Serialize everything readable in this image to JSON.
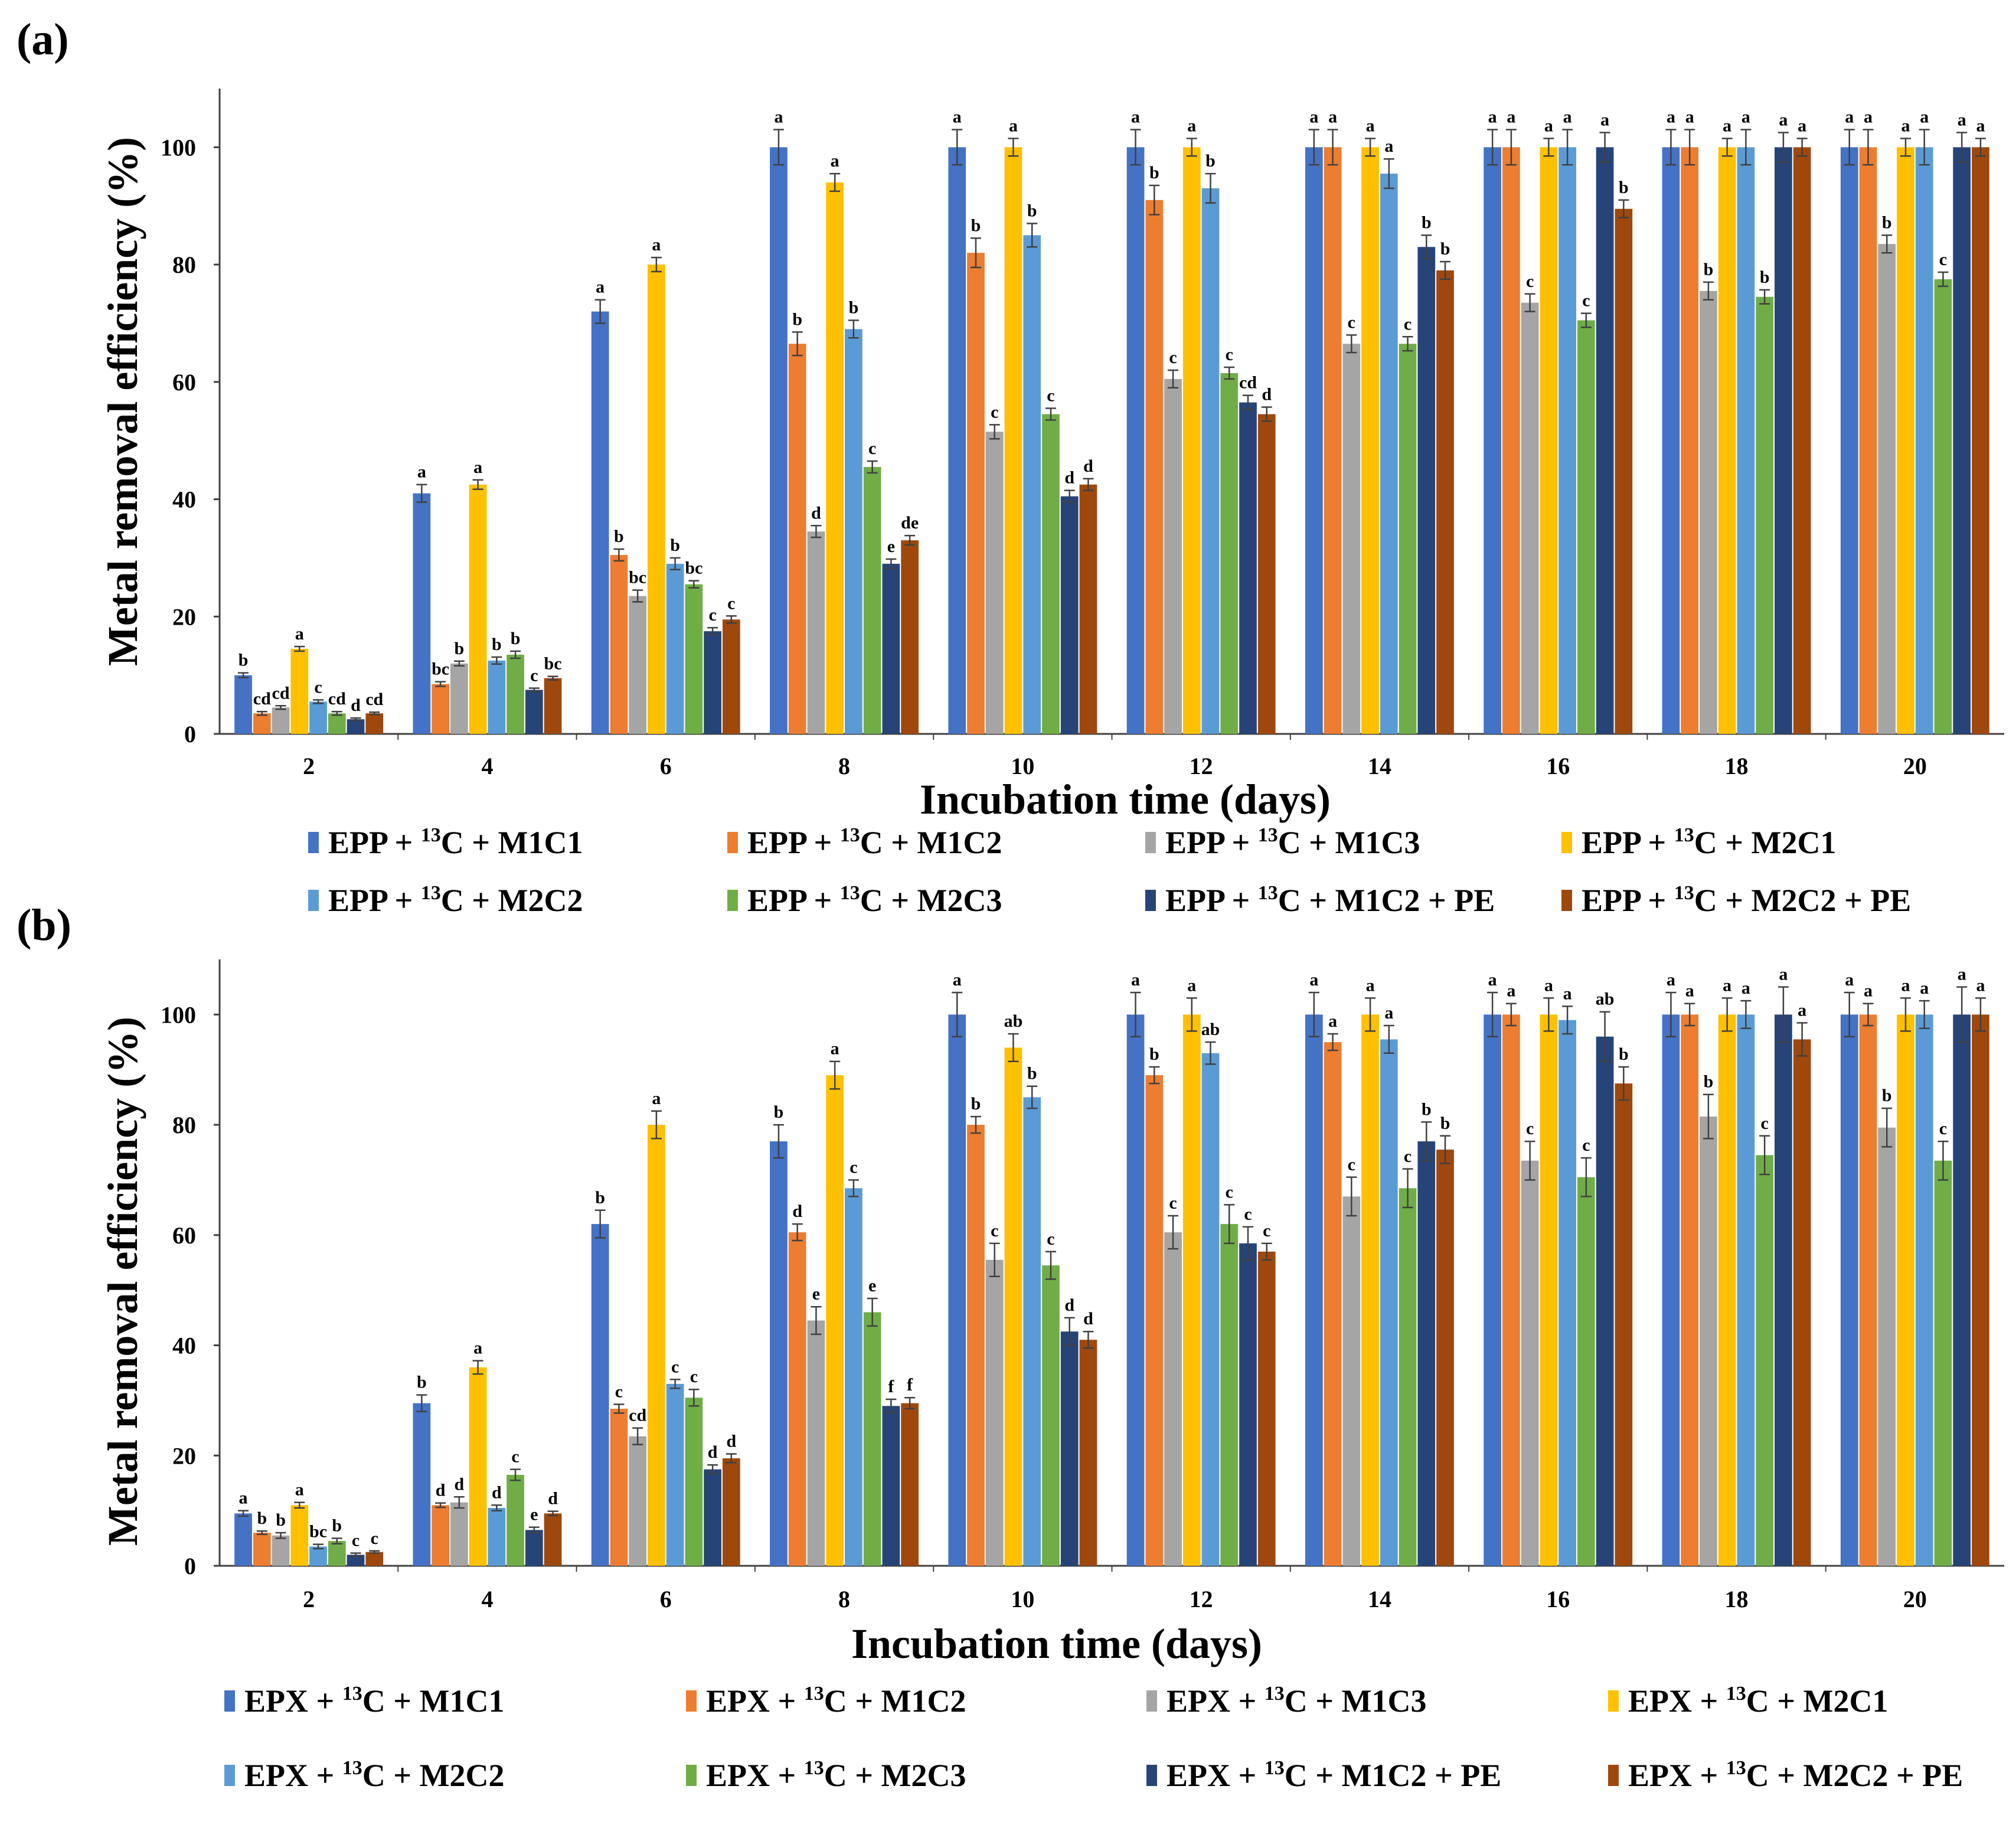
{
  "figure": {
    "panels": [
      "(a)",
      "(b)"
    ]
  },
  "colors": {
    "axis": "#404040",
    "text": "#000000",
    "error_bar": "#404040",
    "series": [
      "#4472c4",
      "#ed7d31",
      "#a5a5a5",
      "#ffc000",
      "#5b9bd5",
      "#70ad47",
      "#264478",
      "#9e480e"
    ]
  },
  "chart_data": [
    {
      "panel": "(a)",
      "type": "bar",
      "xlabel": "Incubation time (days)",
      "ylabel": "Metal removal efficiency (%)",
      "ylim": [
        0,
        110
      ],
      "yticks": [
        0,
        20,
        40,
        60,
        80,
        100
      ],
      "grid": false,
      "legend_position": "bottom",
      "categories": [
        "2",
        "4",
        "6",
        "8",
        "10",
        "12",
        "14",
        "16",
        "18",
        "20"
      ],
      "series": [
        {
          "name": "EPP + 13C + M1C1",
          "legend": {
            "prefix": "EPP + ",
            "sup": "13",
            "suffix": "C + M1C1"
          },
          "values": [
            10,
            41,
            72,
            100,
            100,
            100,
            100,
            100,
            100,
            100
          ],
          "errors": [
            0.4,
            1.5,
            2,
            3,
            3,
            3,
            3,
            3,
            3,
            3
          ],
          "labels": [
            "b",
            "a",
            "a",
            "a",
            "a",
            "a",
            "a",
            "a",
            "a",
            "a"
          ]
        },
        {
          "name": "EPP + 13C + M1C2",
          "legend": {
            "prefix": "EPP + ",
            "sup": "13",
            "suffix": "C + M1C2"
          },
          "values": [
            3.5,
            8.5,
            30.5,
            66.5,
            82,
            91,
            100,
            100,
            100,
            100
          ],
          "errors": [
            0.3,
            0.4,
            1,
            2,
            2.5,
            2.5,
            3,
            3,
            3,
            3
          ],
          "labels": [
            "cd",
            "bc",
            "b",
            "b",
            "b",
            "b",
            "a",
            "a",
            "a",
            "a"
          ]
        },
        {
          "name": "EPP + 13C + M1C3",
          "legend": {
            "prefix": "EPP + ",
            "sup": "13",
            "suffix": "C + M1C3"
          },
          "values": [
            4.5,
            12,
            23.5,
            34.5,
            51.5,
            60.5,
            66.5,
            73.5,
            75.5,
            83.5
          ],
          "errors": [
            0.3,
            0.4,
            1,
            1,
            1.2,
            1.5,
            1.5,
            1.5,
            1.5,
            1.5
          ],
          "labels": [
            "cd",
            "b",
            "bc",
            "d",
            "c",
            "c",
            "c",
            "c",
            "b",
            "b"
          ]
        },
        {
          "name": "EPP + 13C + M2C1",
          "legend": {
            "prefix": "EPP + ",
            "sup": "13",
            "suffix": "C + M2C1"
          },
          "values": [
            14.5,
            42.5,
            80,
            94,
            100,
            100,
            100,
            100,
            100,
            100
          ],
          "errors": [
            0.4,
            0.8,
            1.2,
            1.5,
            1.5,
            1.5,
            1.5,
            1.5,
            1.5,
            1.5
          ],
          "labels": [
            "a",
            "a",
            "a",
            "a",
            "a",
            "a",
            "a",
            "a",
            "a",
            "a"
          ]
        },
        {
          "name": "EPP + 13C + M2C2",
          "legend": {
            "prefix": "EPP + ",
            "sup": "13",
            "suffix": "C + M2C2"
          },
          "values": [
            5.5,
            12.5,
            29,
            69,
            85,
            93,
            95.5,
            100,
            100,
            100
          ],
          "errors": [
            0.3,
            0.6,
            1,
            1.5,
            2,
            2.5,
            2.5,
            3,
            3,
            3
          ],
          "labels": [
            "c",
            "b",
            "b",
            "b",
            "b",
            "b",
            "a",
            "a",
            "a",
            "a"
          ]
        },
        {
          "name": "EPP + 13C + M2C3",
          "legend": {
            "prefix": "EPP + ",
            "sup": "13",
            "suffix": "C + M2C3"
          },
          "values": [
            3.5,
            13.5,
            25.5,
            45.5,
            54.5,
            61.5,
            66.5,
            70.5,
            74.5,
            77.5
          ],
          "errors": [
            0.3,
            0.6,
            0.6,
            1,
            1,
            1,
            1.2,
            1.2,
            1.2,
            1.2
          ],
          "labels": [
            "cd",
            "b",
            "bc",
            "c",
            "c",
            "c",
            "c",
            "c",
            "b",
            "c"
          ]
        },
        {
          "name": "EPP + 13C + M1C2 + PE",
          "legend": {
            "prefix": "EPP + ",
            "sup": "13",
            "suffix": "C + M1C2 + PE"
          },
          "values": [
            2.5,
            7.5,
            17.5,
            29,
            40.5,
            56.5,
            83,
            100,
            100,
            100
          ],
          "errors": [
            0.2,
            0.3,
            0.6,
            0.8,
            1,
            1.2,
            2,
            2.5,
            2.5,
            2.5
          ],
          "labels": [
            "d",
            "c",
            "c",
            "e",
            "d",
            "cd",
            "b",
            "a",
            "a",
            "a"
          ]
        },
        {
          "name": "EPP + 13C + M2C2 + PE",
          "legend": {
            "prefix": "EPP + ",
            "sup": "13",
            "suffix": "C + M2C2 + PE"
          },
          "values": [
            3.5,
            9.5,
            19.5,
            33,
            42.5,
            54.5,
            79,
            89.5,
            100,
            100
          ],
          "errors": [
            0.2,
            0.3,
            0.6,
            0.8,
            1,
            1.2,
            1.5,
            1.5,
            1.5,
            1.5
          ],
          "labels": [
            "cd",
            "bc",
            "c",
            "de",
            "d",
            "d",
            "b",
            "b",
            "a",
            "a"
          ]
        }
      ]
    },
    {
      "panel": "(b)",
      "type": "bar",
      "xlabel": "Incubation time (days)",
      "ylabel": "Metal removal efficiency (%)",
      "ylim": [
        0,
        110
      ],
      "yticks": [
        0,
        20,
        40,
        60,
        80,
        100
      ],
      "grid": false,
      "legend_position": "bottom",
      "categories": [
        "2",
        "4",
        "6",
        "8",
        "10",
        "12",
        "14",
        "16",
        "18",
        "20"
      ],
      "series": [
        {
          "name": "EPX + 13C + M1C1",
          "legend": {
            "prefix": "EPX + ",
            "sup": "13",
            "suffix": "C + M1C1"
          },
          "values": [
            9.5,
            29.5,
            62,
            77,
            100,
            100,
            100,
            100,
            100,
            100
          ],
          "errors": [
            0.5,
            1.5,
            2.5,
            3,
            4,
            4,
            4,
            4,
            4,
            4
          ],
          "labels": [
            "a",
            "b",
            "b",
            "b",
            "a",
            "a",
            "a",
            "a",
            "a",
            "a"
          ]
        },
        {
          "name": "EPX + 13C + M1C2",
          "legend": {
            "prefix": "EPX + ",
            "sup": "13",
            "suffix": "C + M1C2"
          },
          "values": [
            6,
            11,
            28.5,
            60.5,
            80,
            89,
            95,
            100,
            100,
            100
          ],
          "errors": [
            0.3,
            0.4,
            0.8,
            1.5,
            1.5,
            1.5,
            1.5,
            2,
            2,
            2
          ],
          "labels": [
            "b",
            "d",
            "c",
            "d",
            "b",
            "b",
            "a",
            "a",
            "a",
            "a"
          ]
        },
        {
          "name": "EPX + 13C + M1C3",
          "legend": {
            "prefix": "EPX + ",
            "sup": "13",
            "suffix": "C + M1C3"
          },
          "values": [
            5.5,
            11.5,
            23.5,
            44.5,
            55.5,
            60.5,
            67,
            73.5,
            81.5,
            79.5
          ],
          "errors": [
            0.5,
            1,
            1.5,
            2.5,
            3,
            3,
            3.5,
            3.5,
            4,
            3.5
          ],
          "labels": [
            "b",
            "d",
            "cd",
            "e",
            "c",
            "c",
            "c",
            "c",
            "b",
            "b"
          ]
        },
        {
          "name": "EPX + 13C + M2C1",
          "legend": {
            "prefix": "EPX + ",
            "sup": "13",
            "suffix": "C + M2C1"
          },
          "values": [
            11,
            36,
            80,
            89,
            94,
            100,
            100,
            100,
            100,
            100
          ],
          "errors": [
            0.5,
            1.2,
            2.5,
            2.5,
            2.5,
            3,
            3,
            3,
            3,
            3
          ],
          "labels": [
            "a",
            "a",
            "a",
            "a",
            "ab",
            "a",
            "a",
            "a",
            "a",
            "a"
          ]
        },
        {
          "name": "EPX + 13C + M2C2",
          "legend": {
            "prefix": "EPX + ",
            "sup": "13",
            "suffix": "C + M2C2"
          },
          "values": [
            3.5,
            10.5,
            33,
            68.5,
            85,
            93,
            95.5,
            99,
            100,
            100
          ],
          "errors": [
            0.4,
            0.5,
            0.8,
            1.5,
            2,
            2,
            2.5,
            2.5,
            2.5,
            2.5
          ],
          "labels": [
            "bc",
            "d",
            "c",
            "c",
            "b",
            "ab",
            "a",
            "a",
            "a",
            "a"
          ]
        },
        {
          "name": "EPX + 13C + M2C3",
          "legend": {
            "prefix": "EPX + ",
            "sup": "13",
            "suffix": "C + M2C3"
          },
          "values": [
            4.5,
            16.5,
            30.5,
            46,
            54.5,
            62,
            68.5,
            70.5,
            74.5,
            73.5
          ],
          "errors": [
            0.5,
            1,
            1.5,
            2.5,
            2.5,
            3.5,
            3.5,
            3.5,
            3.5,
            3.5
          ],
          "labels": [
            "b",
            "c",
            "c",
            "e",
            "c",
            "c",
            "c",
            "c",
            "c",
            "c"
          ]
        },
        {
          "name": "EPX + 13C + M1C2 + PE",
          "legend": {
            "prefix": "EPX + ",
            "sup": "13",
            "suffix": "C + M1C2 + PE"
          },
          "values": [
            2,
            6.5,
            17.5,
            29,
            42.5,
            58.5,
            77,
            96,
            100,
            100
          ],
          "errors": [
            0.3,
            0.5,
            0.8,
            1.2,
            2.5,
            3,
            3.5,
            4.5,
            5,
            5
          ],
          "labels": [
            "c",
            "e",
            "d",
            "f",
            "d",
            "c",
            "b",
            "ab",
            "a",
            "a"
          ]
        },
        {
          "name": "EPX + 13C + M2C2 + PE",
          "legend": {
            "prefix": "EPX + ",
            "sup": "13",
            "suffix": "C + M2C2 + PE"
          },
          "values": [
            2.5,
            9.5,
            19.5,
            29.5,
            41,
            57,
            75.5,
            87.5,
            95.5,
            100
          ],
          "errors": [
            0.2,
            0.4,
            0.8,
            1,
            1.5,
            1.5,
            2.5,
            3,
            3,
            3
          ],
          "labels": [
            "c",
            "d",
            "d",
            "f",
            "d",
            "c",
            "b",
            "b",
            "a",
            "a"
          ]
        }
      ]
    }
  ]
}
